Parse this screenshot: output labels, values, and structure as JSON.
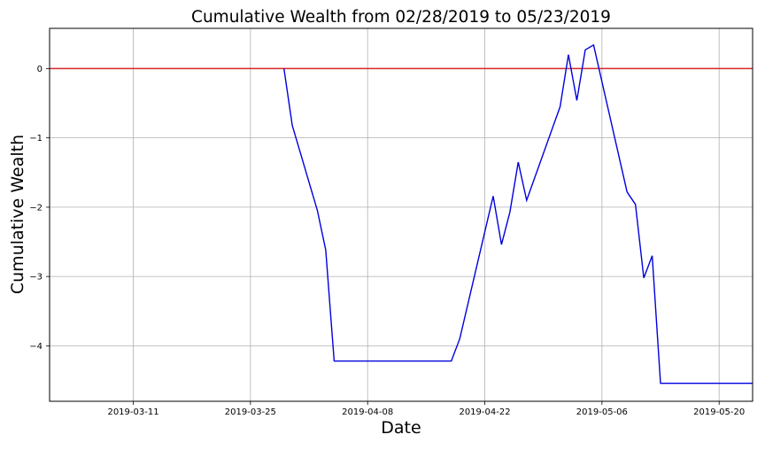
{
  "chart_data": {
    "type": "line",
    "title": "Cumulative Wealth from 02/28/2019 to 05/23/2019",
    "xlabel": "Date",
    "ylabel": "Cumulative Wealth",
    "x_axis_type": "date",
    "xlim": [
      "2019-03-01",
      "2019-05-24"
    ],
    "ylim": [
      -4.8,
      0.58
    ],
    "x_ticks": [
      "2019-03-11",
      "2019-03-25",
      "2019-04-08",
      "2019-04-22",
      "2019-05-06",
      "2019-05-20"
    ],
    "y_ticks": [
      0,
      -1,
      -2,
      -3,
      -4
    ],
    "y_tick_labels": [
      "0",
      "−1",
      "−2",
      "−3",
      "−4"
    ],
    "grid": true,
    "legend": "none",
    "reference_line": {
      "y": 0,
      "color": "#d62728"
    },
    "series": [
      {
        "color": "#0000dd",
        "points": [
          [
            "2019-03-29",
            0.0
          ],
          [
            "2019-03-30",
            -0.82
          ],
          [
            "2019-04-02",
            -2.05
          ],
          [
            "2019-04-03",
            -2.62
          ],
          [
            "2019-04-04",
            -4.22
          ],
          [
            "2019-04-18",
            -4.22
          ],
          [
            "2019-04-19",
            -3.9
          ],
          [
            "2019-04-23",
            -1.84
          ],
          [
            "2019-04-24",
            -2.54
          ],
          [
            "2019-04-25",
            -2.07
          ],
          [
            "2019-04-26",
            -1.35
          ],
          [
            "2019-04-27",
            -1.9
          ],
          [
            "2019-05-01",
            -0.55
          ],
          [
            "2019-05-02",
            0.2
          ],
          [
            "2019-05-03",
            -0.46
          ],
          [
            "2019-05-04",
            0.27
          ],
          [
            "2019-05-05",
            0.34
          ],
          [
            "2019-05-09",
            -1.78
          ],
          [
            "2019-05-10",
            -1.96
          ],
          [
            "2019-05-11",
            -3.02
          ],
          [
            "2019-05-12",
            -2.7
          ],
          [
            "2019-05-13",
            -4.54
          ],
          [
            "2019-05-24",
            -4.54
          ]
        ]
      }
    ]
  }
}
